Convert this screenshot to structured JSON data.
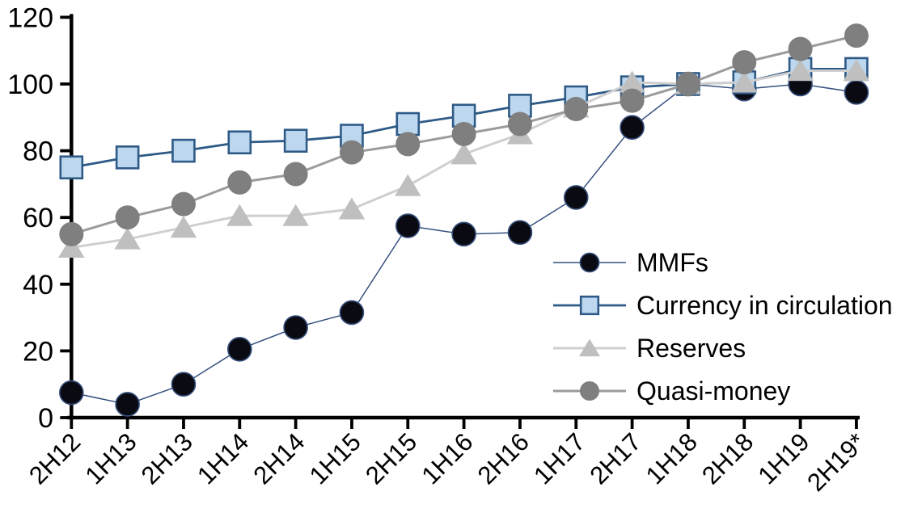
{
  "chart_data": {
    "type": "line",
    "title": "",
    "xlabel": "",
    "ylabel": "",
    "grid": false,
    "ylim": [
      0,
      120
    ],
    "yticks": [
      0,
      20,
      40,
      60,
      80,
      100,
      120
    ],
    "legend_position": "inside-right",
    "categories": [
      "2H12",
      "1H13",
      "2H13",
      "1H14",
      "2H14",
      "1H15",
      "2H15",
      "1H16",
      "2H16",
      "1H17",
      "2H17",
      "1H18",
      "2H18",
      "1H19",
      "2H19*"
    ],
    "series": [
      {
        "name": "MMFs",
        "marker": "circle",
        "marker_size": 29,
        "fill": "#0a0a12",
        "marker_stroke": "#36507e",
        "marker_stroke_width": 1.6,
        "line_color": "#36507e",
        "line_width": 1.5,
        "values": [
          7.5,
          4,
          10,
          20.5,
          27,
          31.5,
          57.5,
          55,
          55.5,
          66,
          87,
          100,
          98.5,
          100,
          97.5
        ]
      },
      {
        "name": "Currency in circulation",
        "marker": "square",
        "marker_size": 27,
        "fill": "#bdd7ee",
        "marker_stroke": "#2e5a87",
        "marker_stroke_width": 2.6,
        "line_color": "#2e5a87",
        "line_width": 2.8,
        "values": [
          75,
          78,
          80,
          82.5,
          83,
          84.5,
          88,
          90.5,
          93.5,
          96,
          99,
          100,
          100.5,
          104.5,
          104.5
        ]
      },
      {
        "name": "Reserves",
        "marker": "triangle",
        "marker_size": 30,
        "fill": "#bfbfbf",
        "marker_stroke": "none",
        "marker_stroke_width": 0,
        "line_color": "#cfcfcf",
        "line_width": 3,
        "values": [
          51,
          53.5,
          57,
          60.5,
          60.5,
          62.5,
          69.5,
          79,
          85,
          93,
          100.5,
          100,
          100.5,
          104,
          104
        ]
      },
      {
        "name": "Quasi-money",
        "marker": "circle",
        "marker_size": 30,
        "fill": "#7f7f7f",
        "marker_stroke": "none",
        "marker_stroke_width": 0,
        "line_color": "#9b9b9b",
        "line_width": 3,
        "values": [
          55,
          60,
          64,
          70.5,
          73,
          79.5,
          82,
          85,
          88,
          92.5,
          95,
          100,
          106.5,
          110.5,
          114.5
        ]
      }
    ],
    "axis_color": "#000000"
  }
}
